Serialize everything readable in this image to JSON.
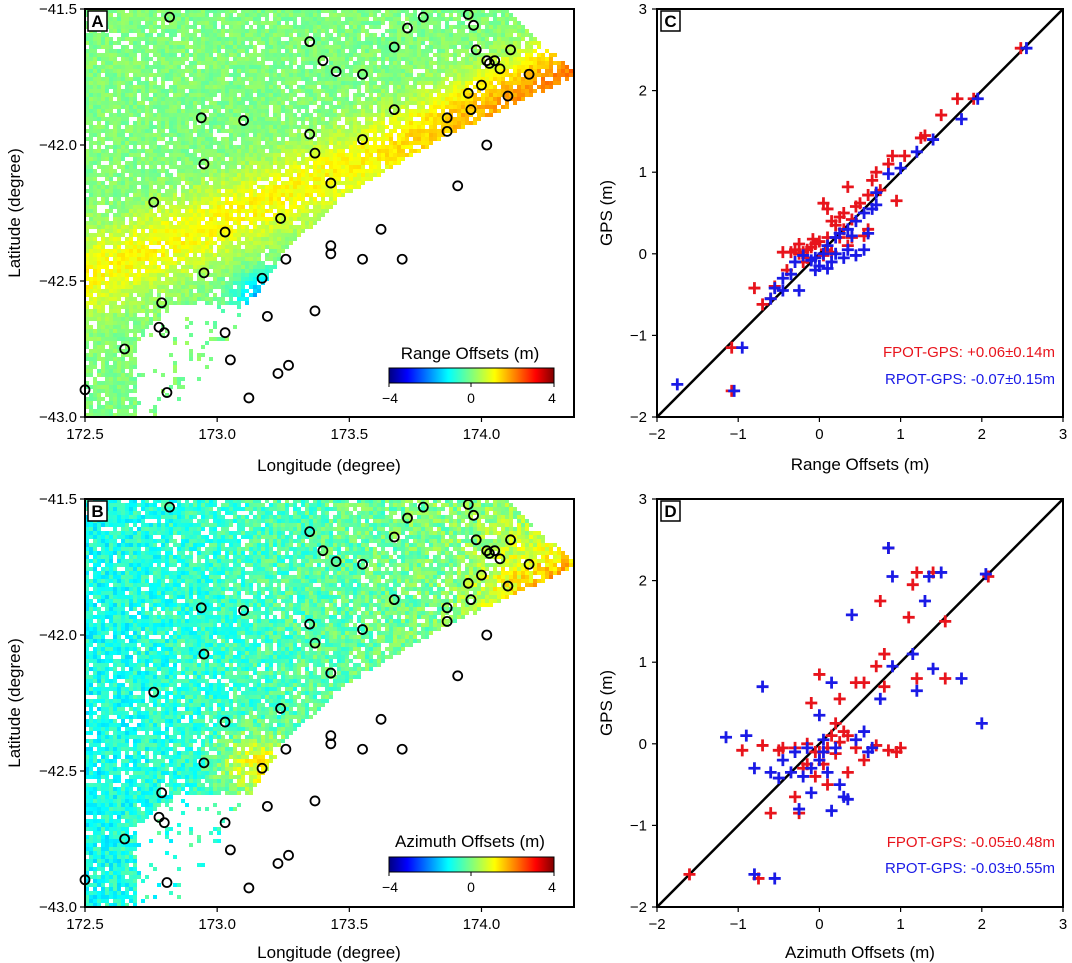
{
  "maps": [
    {
      "panel": "A",
      "kind": "range",
      "colorbar_title": "Range Offsets (m)",
      "colorbar_ticks": [
        "−4",
        "0",
        "4"
      ],
      "xlabel": "Longitude (degree)",
      "ylabel": "Latitude (degree)",
      "xticks": [
        "172.5",
        "173.0",
        "173.5",
        "174.0"
      ],
      "yticks": [
        "−41.5",
        "−42.0",
        "−42.5",
        "−43.0"
      ]
    },
    {
      "panel": "B",
      "kind": "azimuth",
      "colorbar_title": "Azimuth Offsets (m)",
      "colorbar_ticks": [
        "−4",
        "0",
        "4"
      ],
      "xlabel": "Longitude (degree)",
      "ylabel": "Latitude (degree)",
      "xticks": [
        "172.5",
        "173.0",
        "173.5",
        "174.0"
      ],
      "yticks": [
        "−41.5",
        "−42.0",
        "−42.5",
        "−43.0"
      ]
    }
  ],
  "gps_stations": [
    [
      172.82,
      -41.53
    ],
    [
      173.35,
      -41.62
    ],
    [
      173.67,
      -41.64
    ],
    [
      173.72,
      -41.57
    ],
    [
      173.78,
      -41.53
    ],
    [
      173.95,
      -41.52
    ],
    [
      173.97,
      -41.56
    ],
    [
      173.98,
      -41.65
    ],
    [
      174.02,
      -41.69
    ],
    [
      174.03,
      -41.7
    ],
    [
      174.05,
      -41.69
    ],
    [
      174.07,
      -41.72
    ],
    [
      174.11,
      -41.65
    ],
    [
      174.18,
      -41.74
    ],
    [
      173.4,
      -41.69
    ],
    [
      173.55,
      -41.74
    ],
    [
      173.45,
      -41.73
    ],
    [
      174.0,
      -41.78
    ],
    [
      173.95,
      -41.81
    ],
    [
      174.1,
      -41.82
    ],
    [
      173.96,
      -41.87
    ],
    [
      173.67,
      -41.87
    ],
    [
      173.87,
      -41.9
    ],
    [
      172.94,
      -41.9
    ],
    [
      173.1,
      -41.91
    ],
    [
      173.35,
      -41.96
    ],
    [
      173.87,
      -41.95
    ],
    [
      173.55,
      -41.98
    ],
    [
      174.02,
      -42.0
    ],
    [
      172.95,
      -42.07
    ],
    [
      173.37,
      -42.03
    ],
    [
      173.43,
      -42.14
    ],
    [
      173.91,
      -42.15
    ],
    [
      172.76,
      -42.21
    ],
    [
      173.24,
      -42.27
    ],
    [
      173.03,
      -42.32
    ],
    [
      173.62,
      -42.31
    ],
    [
      173.43,
      -42.37
    ],
    [
      173.43,
      -42.4
    ],
    [
      173.55,
      -42.42
    ],
    [
      173.26,
      -42.42
    ],
    [
      173.7,
      -42.42
    ],
    [
      172.95,
      -42.47
    ],
    [
      173.17,
      -42.49
    ],
    [
      172.79,
      -42.58
    ],
    [
      173.19,
      -42.63
    ],
    [
      173.37,
      -42.61
    ],
    [
      172.78,
      -42.67
    ],
    [
      172.8,
      -42.69
    ],
    [
      173.03,
      -42.69
    ],
    [
      172.65,
      -42.75
    ],
    [
      173.05,
      -42.79
    ],
    [
      173.27,
      -42.81
    ],
    [
      173.23,
      -42.84
    ],
    [
      172.5,
      -42.9
    ],
    [
      172.81,
      -42.91
    ],
    [
      173.12,
      -42.93
    ]
  ],
  "chart_data": [
    {
      "panel": "C",
      "type": "scatter",
      "xlabel": "Range Offsets (m)",
      "ylabel": "GPS (m)",
      "xlim": [
        -2,
        3
      ],
      "ylim": [
        -2,
        3
      ],
      "xticks": [
        "−2",
        "−1",
        "0",
        "1",
        "2",
        "3"
      ],
      "yticks": [
        "−2",
        "−1",
        "0",
        "1",
        "2",
        "3"
      ],
      "reference_line": "y = x",
      "series": [
        {
          "name": "FPOT",
          "color": "#e8141c",
          "stat": "FPOT-GPS: +0.06±0.14m",
          "points": [
            [
              2.48,
              2.52
            ],
            [
              1.7,
              1.9
            ],
            [
              1.9,
              1.9
            ],
            [
              1.5,
              1.7
            ],
            [
              1.3,
              1.45
            ],
            [
              1.25,
              1.42
            ],
            [
              1.05,
              1.2
            ],
            [
              0.9,
              1.2
            ],
            [
              0.85,
              1.1
            ],
            [
              0.7,
              1.0
            ],
            [
              0.65,
              0.9
            ],
            [
              0.75,
              0.78
            ],
            [
              0.6,
              0.72
            ],
            [
              0.5,
              0.62
            ],
            [
              0.45,
              0.58
            ],
            [
              0.3,
              0.5
            ],
            [
              0.25,
              0.45
            ],
            [
              0.4,
              0.42
            ],
            [
              0.05,
              0.62
            ],
            [
              0.1,
              0.55
            ],
            [
              0.15,
              0.4
            ],
            [
              0.2,
              0.35
            ],
            [
              0.3,
              0.3
            ],
            [
              0.6,
              0.3
            ],
            [
              0.55,
              0.22
            ],
            [
              0.4,
              0.2
            ],
            [
              0.25,
              0.2
            ],
            [
              0.35,
              0.1
            ],
            [
              0.1,
              0.2
            ],
            [
              0.0,
              0.15
            ],
            [
              -0.05,
              0.12
            ],
            [
              -0.1,
              0.08
            ],
            [
              -0.15,
              0.05
            ],
            [
              -0.2,
              0.02
            ],
            [
              -0.25,
              0.0
            ],
            [
              -0.3,
              0.05
            ],
            [
              -0.35,
              0.02
            ],
            [
              -0.45,
              0.02
            ],
            [
              -0.15,
              -0.05
            ],
            [
              0.05,
              -0.02
            ],
            [
              -0.2,
              -0.1
            ],
            [
              -0.25,
              0.12
            ],
            [
              -0.08,
              0.18
            ],
            [
              0.08,
              0.05
            ],
            [
              0.15,
              0.02
            ],
            [
              -0.4,
              -0.2
            ],
            [
              -0.55,
              -0.4
            ],
            [
              -0.6,
              -0.55
            ],
            [
              -0.7,
              -0.62
            ],
            [
              -0.8,
              -0.42
            ],
            [
              -1.08,
              -1.15
            ],
            [
              -1.08,
              -1.68
            ],
            [
              0.35,
              0.82
            ],
            [
              0.95,
              0.65
            ]
          ]
        },
        {
          "name": "RPOT",
          "color": "#1a1ae6",
          "stat": "RPOT-GPS: -0.07±0.15m",
          "points": [
            [
              2.55,
              2.52
            ],
            [
              1.95,
              1.9
            ],
            [
              1.75,
              1.65
            ],
            [
              1.4,
              1.4
            ],
            [
              1.2,
              1.25
            ],
            [
              1.0,
              1.05
            ],
            [
              0.85,
              0.98
            ],
            [
              0.7,
              0.75
            ],
            [
              0.65,
              0.55
            ],
            [
              0.55,
              0.5
            ],
            [
              0.45,
              0.4
            ],
            [
              0.7,
              0.6
            ],
            [
              0.35,
              0.3
            ],
            [
              0.25,
              0.25
            ],
            [
              0.4,
              0.22
            ],
            [
              0.6,
              0.25
            ],
            [
              0.2,
              0.2
            ],
            [
              0.1,
              0.1
            ],
            [
              0.05,
              0.0
            ],
            [
              0.2,
              0.0
            ],
            [
              0.35,
              0.05
            ],
            [
              0.45,
              -0.02
            ],
            [
              0.3,
              -0.05
            ],
            [
              0.15,
              -0.1
            ],
            [
              0.0,
              -0.15
            ],
            [
              -0.05,
              -0.05
            ],
            [
              -0.2,
              -0.02
            ],
            [
              -0.3,
              -0.1
            ],
            [
              -0.1,
              -0.08
            ],
            [
              -0.35,
              -0.25
            ],
            [
              -0.45,
              -0.45
            ],
            [
              -0.55,
              -0.42
            ],
            [
              -0.6,
              -0.55
            ],
            [
              -0.45,
              -0.3
            ],
            [
              -0.05,
              -0.2
            ],
            [
              0.1,
              -0.18
            ],
            [
              -0.95,
              -1.15
            ],
            [
              -1.05,
              -1.68
            ],
            [
              -1.75,
              -1.6
            ],
            [
              -0.25,
              -0.45
            ],
            [
              0.55,
              0.05
            ]
          ]
        }
      ]
    },
    {
      "panel": "D",
      "type": "scatter",
      "xlabel": "Azimuth Offsets (m)",
      "ylabel": "GPS (m)",
      "xlim": [
        -2,
        3
      ],
      "ylim": [
        -2,
        3
      ],
      "xticks": [
        "−2",
        "−1",
        "0",
        "1",
        "2",
        "3"
      ],
      "yticks": [
        "−2",
        "−1",
        "0",
        "1",
        "2",
        "3"
      ],
      "reference_line": "y = x",
      "series": [
        {
          "name": "FPOT",
          "color": "#e8141c",
          "stat": "FPOT-GPS: -0.05±0.48m",
          "points": [
            [
              -1.6,
              -1.6
            ],
            [
              -0.75,
              -1.65
            ],
            [
              -0.95,
              -0.08
            ],
            [
              -0.7,
              -0.02
            ],
            [
              -0.5,
              -0.08
            ],
            [
              -0.3,
              -0.05
            ],
            [
              -0.15,
              0.0
            ],
            [
              0.0,
              -0.1
            ],
            [
              0.1,
              -0.05
            ],
            [
              0.25,
              0.02
            ],
            [
              0.45,
              -0.05
            ],
            [
              0.7,
              -0.02
            ],
            [
              1.0,
              -0.05
            ],
            [
              0.2,
              -0.12
            ],
            [
              -0.2,
              -0.3
            ],
            [
              -0.05,
              -0.4
            ],
            [
              0.05,
              -0.25
            ],
            [
              0.15,
              0.1
            ],
            [
              0.3,
              0.15
            ],
            [
              -0.45,
              -0.05
            ],
            [
              0.85,
              -0.08
            ],
            [
              0.95,
              -0.1
            ],
            [
              -0.1,
              0.5
            ],
            [
              0.0,
              0.85
            ],
            [
              0.25,
              0.55
            ],
            [
              0.35,
              0.1
            ],
            [
              0.55,
              0.75
            ],
            [
              0.45,
              0.75
            ],
            [
              0.7,
              0.95
            ],
            [
              0.8,
              1.1
            ],
            [
              0.75,
              1.75
            ],
            [
              0.85,
              2.4
            ],
            [
              1.1,
              1.55
            ],
            [
              1.15,
              1.95
            ],
            [
              1.2,
              2.1
            ],
            [
              1.4,
              2.1
            ],
            [
              1.55,
              1.5
            ],
            [
              1.2,
              0.8
            ],
            [
              1.55,
              0.8
            ],
            [
              2.08,
              2.05
            ],
            [
              0.8,
              0.7
            ],
            [
              0.55,
              -0.2
            ],
            [
              -0.6,
              -0.85
            ],
            [
              -0.25,
              -0.85
            ],
            [
              -0.3,
              -0.65
            ],
            [
              -0.15,
              -0.25
            ],
            [
              0.1,
              -0.5
            ],
            [
              0.2,
              0.25
            ],
            [
              -0.05,
              -0.1
            ],
            [
              0.35,
              -0.35
            ]
          ]
        },
        {
          "name": "RPOT",
          "color": "#1a1ae6",
          "stat": "RPOT-GPS: -0.03±0.55m",
          "points": [
            [
              -0.8,
              -1.6
            ],
            [
              -0.55,
              -1.65
            ],
            [
              -1.15,
              0.08
            ],
            [
              -0.9,
              0.1
            ],
            [
              -0.7,
              0.7
            ],
            [
              -0.45,
              -0.2
            ],
            [
              -0.6,
              -0.35
            ],
            [
              -0.5,
              -0.42
            ],
            [
              -0.2,
              -0.4
            ],
            [
              -0.1,
              -0.3
            ],
            [
              0.0,
              -0.2
            ],
            [
              -0.3,
              -0.1
            ],
            [
              -0.15,
              -0.05
            ],
            [
              0.05,
              0.05
            ],
            [
              0.2,
              -0.05
            ],
            [
              0.1,
              -0.35
            ],
            [
              -0.25,
              -0.8
            ],
            [
              0.15,
              -0.82
            ],
            [
              0.3,
              -0.65
            ],
            [
              0.35,
              -0.68
            ],
            [
              0.15,
              0.75
            ],
            [
              0.0,
              0.35
            ],
            [
              0.4,
              1.58
            ],
            [
              0.45,
              0.05
            ],
            [
              0.55,
              0.15
            ],
            [
              0.65,
              -0.05
            ],
            [
              0.75,
              0.55
            ],
            [
              0.9,
              0.95
            ],
            [
              0.85,
              2.4
            ],
            [
              0.9,
              2.05
            ],
            [
              1.15,
              1.1
            ],
            [
              1.2,
              0.65
            ],
            [
              1.3,
              1.75
            ],
            [
              1.35,
              2.05
            ],
            [
              1.5,
              2.1
            ],
            [
              1.4,
              0.92
            ],
            [
              1.75,
              0.8
            ],
            [
              2.0,
              0.25
            ],
            [
              2.05,
              2.08
            ],
            [
              -0.1,
              -0.6
            ],
            [
              0.25,
              -0.5
            ],
            [
              -0.35,
              -0.35
            ],
            [
              0.05,
              -0.1
            ],
            [
              0.6,
              -0.1
            ],
            [
              -0.8,
              -0.3
            ]
          ]
        }
      ]
    }
  ]
}
